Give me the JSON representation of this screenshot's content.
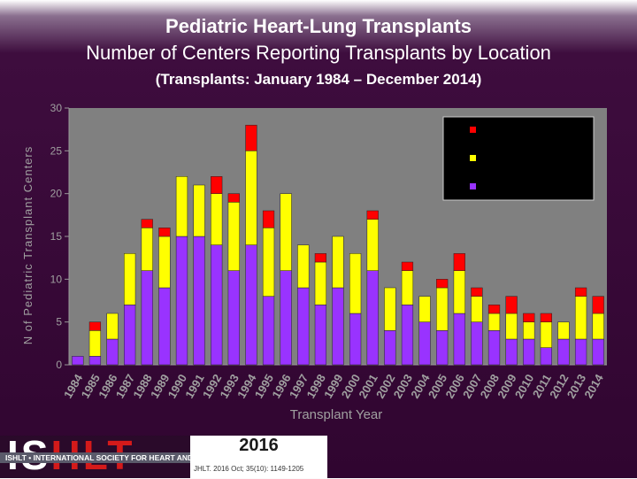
{
  "header": {
    "title": "Pediatric Heart-Lung Transplants",
    "subtitle": "Number of Centers Reporting Transplants by Location",
    "date_range": "(Transplants: January 1984 – December 2014)"
  },
  "chart_data": {
    "type": "bar",
    "stacked": true,
    "xlabel": "Transplant Year",
    "ylabel": "N of Pediatric Transplant Centers",
    "ylim": [
      0,
      30
    ],
    "yticks": [
      0,
      5,
      10,
      15,
      20,
      25,
      30
    ],
    "categories": [
      "1984",
      "1985",
      "1986",
      "1987",
      "1988",
      "1989",
      "1990",
      "1991",
      "1992",
      "1993",
      "1994",
      "1995",
      "1996",
      "1997",
      "1998",
      "1999",
      "2000",
      "2001",
      "2002",
      "2003",
      "2004",
      "2005",
      "2006",
      "2007",
      "2008",
      "2009",
      "2010",
      "2011",
      "2012",
      "2013",
      "2014"
    ],
    "series": [
      {
        "color": "#9933ff",
        "values": [
          1,
          1,
          3,
          7,
          11,
          9,
          15,
          15,
          14,
          11,
          14,
          8,
          11,
          9,
          7,
          9,
          6,
          11,
          4,
          7,
          5,
          4,
          6,
          5,
          4,
          3,
          3,
          2,
          3,
          3,
          3
        ]
      },
      {
        "color": "#ffff00",
        "values": [
          0,
          3,
          3,
          6,
          5,
          6,
          7,
          6,
          6,
          8,
          11,
          8,
          9,
          5,
          5,
          6,
          7,
          6,
          5,
          4,
          3,
          5,
          5,
          3,
          2,
          3,
          2,
          3,
          2,
          5,
          3
        ]
      },
      {
        "color": "#ff0000",
        "values": [
          0,
          1,
          0,
          0,
          1,
          1,
          0,
          0,
          2,
          1,
          3,
          2,
          0,
          0,
          1,
          0,
          0,
          1,
          0,
          1,
          0,
          1,
          2,
          1,
          1,
          2,
          1,
          1,
          0,
          1,
          2
        ]
      }
    ],
    "legend": {
      "position": "top-right",
      "labels_visible": false
    },
    "grid": false
  },
  "footer": {
    "logo_text_a": "IS",
    "logo_text_b": "HLT",
    "org_line": "ISHLT • INTERNATIONAL SOCIETY FOR HEART AND LUNG TRANSPLANTATION",
    "year": "2016",
    "citation": "JHLT. 2016 Oct; 35(10): 1149-1205"
  }
}
